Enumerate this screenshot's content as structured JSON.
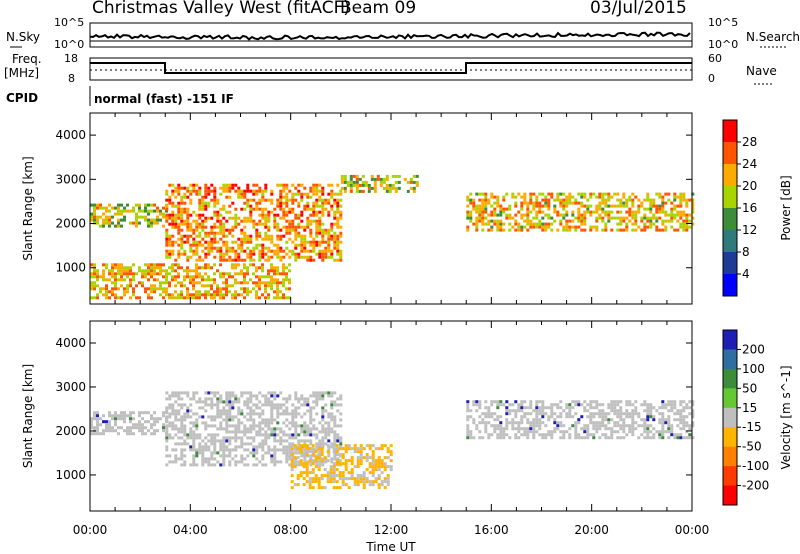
{
  "header": {
    "station": "Christmas Valley West (fitACF)",
    "beam": "Beam 09",
    "date": "03/Jul/2015"
  },
  "top_panels": {
    "nsky_label": "N.Sky",
    "nsky_ticks": [
      "10^5",
      "10^0"
    ],
    "nsearch_label": "N.Search",
    "nsearch_ticks": [
      "10^5",
      "10^0"
    ],
    "freq_label": "Freq.",
    "freq_unit": "[MHz]",
    "freq_ticks": [
      "18",
      "8"
    ],
    "nave_label": "Nave",
    "nave_ticks": [
      "60",
      "0"
    ],
    "cpid_label": "CPID",
    "cpid_text": "normal (fast) -151 IF"
  },
  "chart_data": [
    {
      "type": "heatmap",
      "name": "power-panel",
      "ylabel": "Slant Range [km]",
      "yticks": [
        "4000",
        "3000",
        "2000",
        "1000"
      ],
      "ylim": [
        180,
        4500
      ],
      "xlim": [
        0,
        24
      ],
      "colorbar_label": "Power [dB]",
      "colorbar_ticks": [
        "28",
        "24",
        "20",
        "16",
        "12",
        "8",
        "4"
      ],
      "colorbar_colors": [
        "#ff0000",
        "#ff5500",
        "#ffaa00",
        "#aad400",
        "#3c8c3c",
        "#2f7a7a",
        "#1e3c96",
        "#0000ff"
      ],
      "bands": [
        {
          "t0": 0.0,
          "t1": 3.0,
          "r0": 1950,
          "r1": 2450,
          "level": 0.55
        },
        {
          "t0": 3.0,
          "t1": 10.0,
          "r0": 1200,
          "r1": 2900,
          "level": 0.85
        },
        {
          "t0": 10.0,
          "t1": 13.0,
          "r0": 2700,
          "r1": 3100,
          "level": 0.6
        },
        {
          "t0": 15.0,
          "t1": 24.0,
          "r0": 1850,
          "r1": 2700,
          "level": 0.7
        },
        {
          "t0": 0.0,
          "t1": 8.0,
          "r0": 300,
          "r1": 1100,
          "level": 0.75
        }
      ]
    },
    {
      "type": "heatmap",
      "name": "velocity-panel",
      "ylabel": "Slant Range [km]",
      "yticks": [
        "4000",
        "3000",
        "2000",
        "1000"
      ],
      "ylim": [
        180,
        4500
      ],
      "xlim": [
        0,
        24
      ],
      "xticks": [
        "00:00",
        "04:00",
        "08:00",
        "12:00",
        "16:00",
        "20:00",
        "00:00"
      ],
      "xlabel": "Time UT",
      "colorbar_label": "Velocity [m s^-1]",
      "colorbar_ticks": [
        "200",
        "100",
        "50",
        "15",
        "-15",
        "-50",
        "-100",
        "-200"
      ],
      "colorbar_colors": [
        "#1e1eb4",
        "#2e6ea0",
        "#3c8c3c",
        "#64c832",
        "#bfbfbf",
        "#ffb400",
        "#ff8000",
        "#ff3c00",
        "#ff0000"
      ],
      "bands": [
        {
          "t0": 0.0,
          "t1": 3.0,
          "r0": 1950,
          "r1": 2450,
          "level": 0.0
        },
        {
          "t0": 3.0,
          "t1": 10.0,
          "r0": 1200,
          "r1": 2900,
          "level": 0.0
        },
        {
          "t0": 15.0,
          "t1": 24.0,
          "r0": 1850,
          "r1": 2700,
          "level": 0.0
        },
        {
          "t0": 8.0,
          "t1": 12.0,
          "r0": 700,
          "r1": 1700,
          "level": -50
        }
      ]
    }
  ]
}
